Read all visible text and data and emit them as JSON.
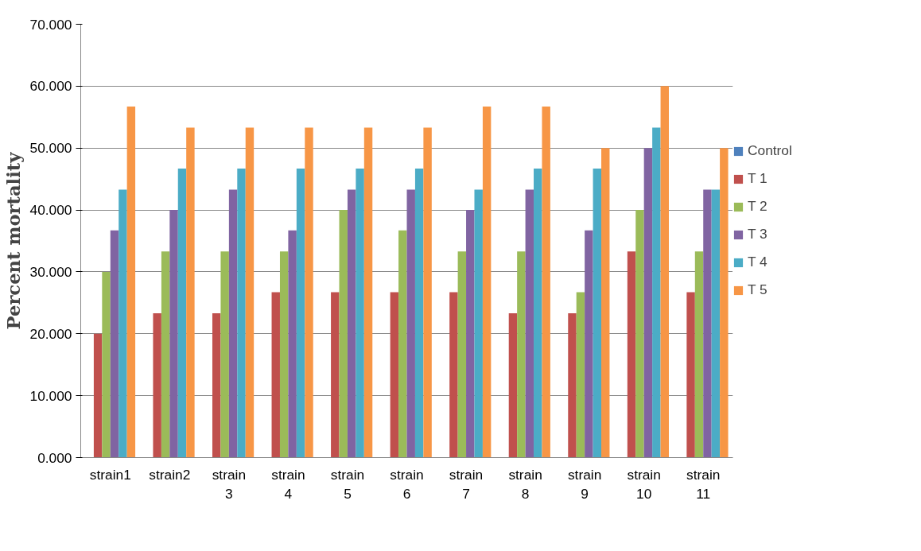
{
  "chart_data": {
    "type": "bar",
    "ylabel": "Percent mortality",
    "categories": [
      "strain1",
      "strain2",
      "strain 3",
      "strain 4",
      "strain 5",
      "strain 6",
      "strain 7",
      "strain 8",
      "strain 9",
      "strain 10",
      "strain 11"
    ],
    "series": [
      {
        "name": "Control",
        "color": "#4f81bd",
        "values": [
          0,
          0,
          0,
          0,
          0,
          0,
          0,
          0,
          0,
          0,
          0
        ]
      },
      {
        "name": "T 1",
        "color": "#c0504d",
        "values": [
          20,
          23.3,
          23.3,
          26.7,
          26.7,
          26.7,
          26.7,
          23.3,
          23.3,
          33.3,
          26.7
        ]
      },
      {
        "name": "T 2",
        "color": "#9bbb59",
        "values": [
          30,
          33.3,
          33.3,
          33.3,
          40,
          36.7,
          33.3,
          33.3,
          26.7,
          40,
          33.3
        ]
      },
      {
        "name": "T 3",
        "color": "#8064a2",
        "values": [
          36.7,
          40,
          43.3,
          36.7,
          43.3,
          43.3,
          40,
          43.3,
          36.7,
          50,
          43.3
        ]
      },
      {
        "name": "T 4",
        "color": "#4bacc6",
        "values": [
          43.3,
          46.7,
          46.7,
          46.7,
          46.7,
          46.7,
          43.3,
          46.7,
          46.7,
          53.3,
          43.3
        ]
      },
      {
        "name": "T 5",
        "color": "#f79646",
        "values": [
          56.7,
          53.3,
          53.3,
          53.3,
          53.3,
          53.3,
          56.7,
          56.7,
          50,
          60,
          50
        ]
      }
    ],
    "ylim": [
      0,
      70
    ],
    "yticks": [
      {
        "value": 0,
        "label": "0.000"
      },
      {
        "value": 10,
        "label": "10.000"
      },
      {
        "value": 20,
        "label": "20.000"
      },
      {
        "value": 30,
        "label": "30.000"
      },
      {
        "value": 40,
        "label": "40.000"
      },
      {
        "value": 50,
        "label": "50.000"
      },
      {
        "value": 60,
        "label": "60.000"
      },
      {
        "value": 70,
        "label": "70.000"
      }
    ],
    "grid": "y",
    "legend": "right"
  }
}
